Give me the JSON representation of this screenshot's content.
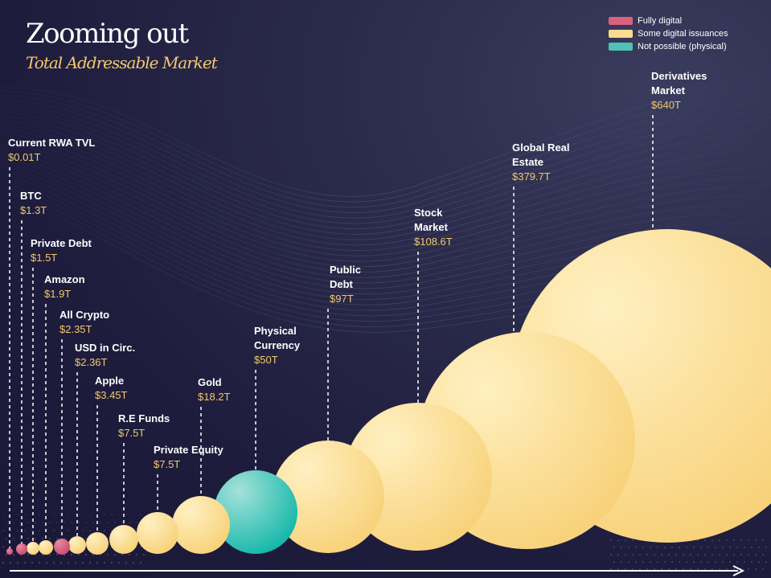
{
  "title": "Zooming out",
  "subtitle": "Total Addressable Market",
  "legend": [
    {
      "label": "Fully digital",
      "color": "#d9607e"
    },
    {
      "label": "Some digital issuances",
      "color": "#fbdc8e"
    },
    {
      "label": "Not possible (physical)",
      "color": "#4fc2b4"
    }
  ],
  "colors": {
    "label": "#ffffff",
    "value": "#f2c96d",
    "fully_digital": "#d9607e",
    "some_digital": "#fbdc8e",
    "physical": "#4fc2b4"
  },
  "chart_data": {
    "type": "bubble",
    "title": "Total Addressable Market",
    "unit": "$T",
    "items": [
      {
        "name": "Current RWA TVL",
        "display": "$0.01T",
        "value": 0.01,
        "category": "Fully digital"
      },
      {
        "name": "BTC",
        "display": "$1.3T",
        "value": 1.3,
        "category": "Fully digital"
      },
      {
        "name": "Private Debt",
        "display": "$1.5T",
        "value": 1.5,
        "category": "Some digital issuances"
      },
      {
        "name": "Amazon",
        "display": "$1.9T",
        "value": 1.9,
        "category": "Some digital issuances"
      },
      {
        "name": "All Crypto",
        "display": "$2.35T",
        "value": 2.35,
        "category": "Fully digital"
      },
      {
        "name": "USD in Circ.",
        "display": "$2.36T",
        "value": 2.36,
        "category": "Some digital issuances"
      },
      {
        "name": "Apple",
        "display": "$3.45T",
        "value": 3.45,
        "category": "Some digital issuances"
      },
      {
        "name": "R.E Funds",
        "display": "$7.5T",
        "value": 7.5,
        "category": "Some digital issuances"
      },
      {
        "name": "Private Equity",
        "display": "$7.5T",
        "value": 7.5,
        "category": "Some digital issuances"
      },
      {
        "name": "Gold",
        "display": "$18.2T",
        "value": 18.2,
        "category": "Some digital issuances"
      },
      {
        "name": "Physical Currency",
        "display": "$50T",
        "value": 50,
        "category": "Not possible (physical)"
      },
      {
        "name": "Public Debt",
        "display": "$97T",
        "value": 97,
        "category": "Some digital issuances"
      },
      {
        "name": "Stock Market",
        "display": "$108.6T",
        "value": 108.6,
        "category": "Some digital issuances"
      },
      {
        "name": "Global Real Estate",
        "display": "$379.7T",
        "value": 379.7,
        "category": "Some digital issuances"
      },
      {
        "name": "Derivatives Market",
        "display": "$640T",
        "value": 640,
        "category": "Some digital issuances"
      }
    ]
  }
}
